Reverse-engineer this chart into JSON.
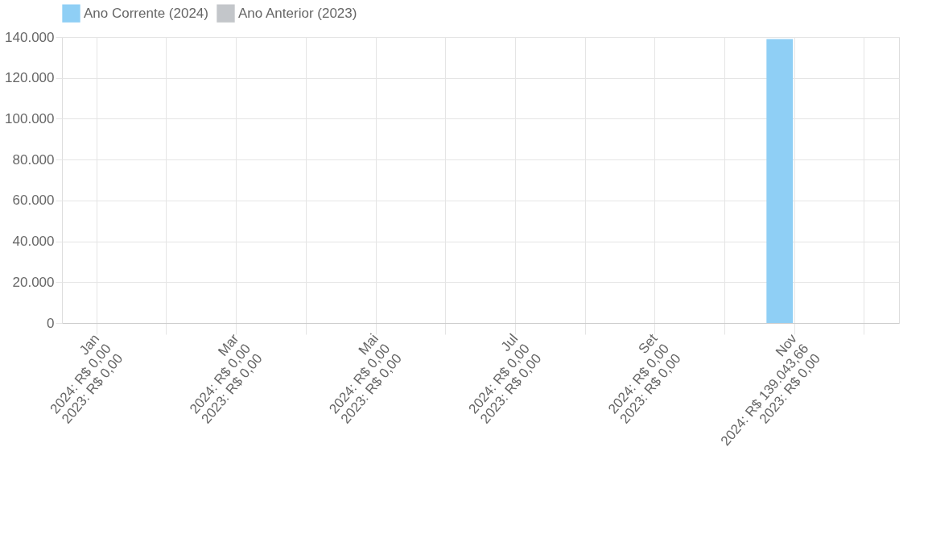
{
  "chart_data": {
    "type": "bar",
    "categories": [
      "Jan\n2024: R$ 0,00\n2023: R$ 0,00",
      null,
      "Mar\n2024: R$ 0,00\n2023: R$ 0,00",
      null,
      "Mai\n2024: R$ 0,00\n2023: R$ 0,00",
      null,
      "Jul\n2024: R$ 0,00\n2023: R$ 0,00",
      null,
      "Set\n2024: R$ 0,00\n2023: R$ 0,00",
      null,
      "Nov\n2024: R$ 139.043,66\n2023: R$ 0,00",
      null
    ],
    "series": [
      {
        "name": "Ano Corrente (2024)",
        "color": "#8fcff5",
        "values": [
          0,
          0,
          0,
          0,
          0,
          0,
          0,
          0,
          0,
          0,
          139043.66,
          0
        ]
      },
      {
        "name": "Ano Anterior (2023)",
        "color": "#c3c6ca",
        "values": [
          0,
          0,
          0,
          0,
          0,
          0,
          0,
          0,
          0,
          0,
          0,
          0
        ]
      }
    ],
    "ylim": [
      0,
      140000
    ],
    "yticks": [
      {
        "value": 0,
        "label": "0"
      },
      {
        "value": 20000,
        "label": "20.000"
      },
      {
        "value": 40000,
        "label": "40.000"
      },
      {
        "value": 60000,
        "label": "60.000"
      },
      {
        "value": 80000,
        "label": "80.000"
      },
      {
        "value": 100000,
        "label": "100.000"
      },
      {
        "value": 120000,
        "label": "120.000"
      },
      {
        "value": 140000,
        "label": "140.000"
      }
    ],
    "grid": true,
    "legend": "top"
  }
}
